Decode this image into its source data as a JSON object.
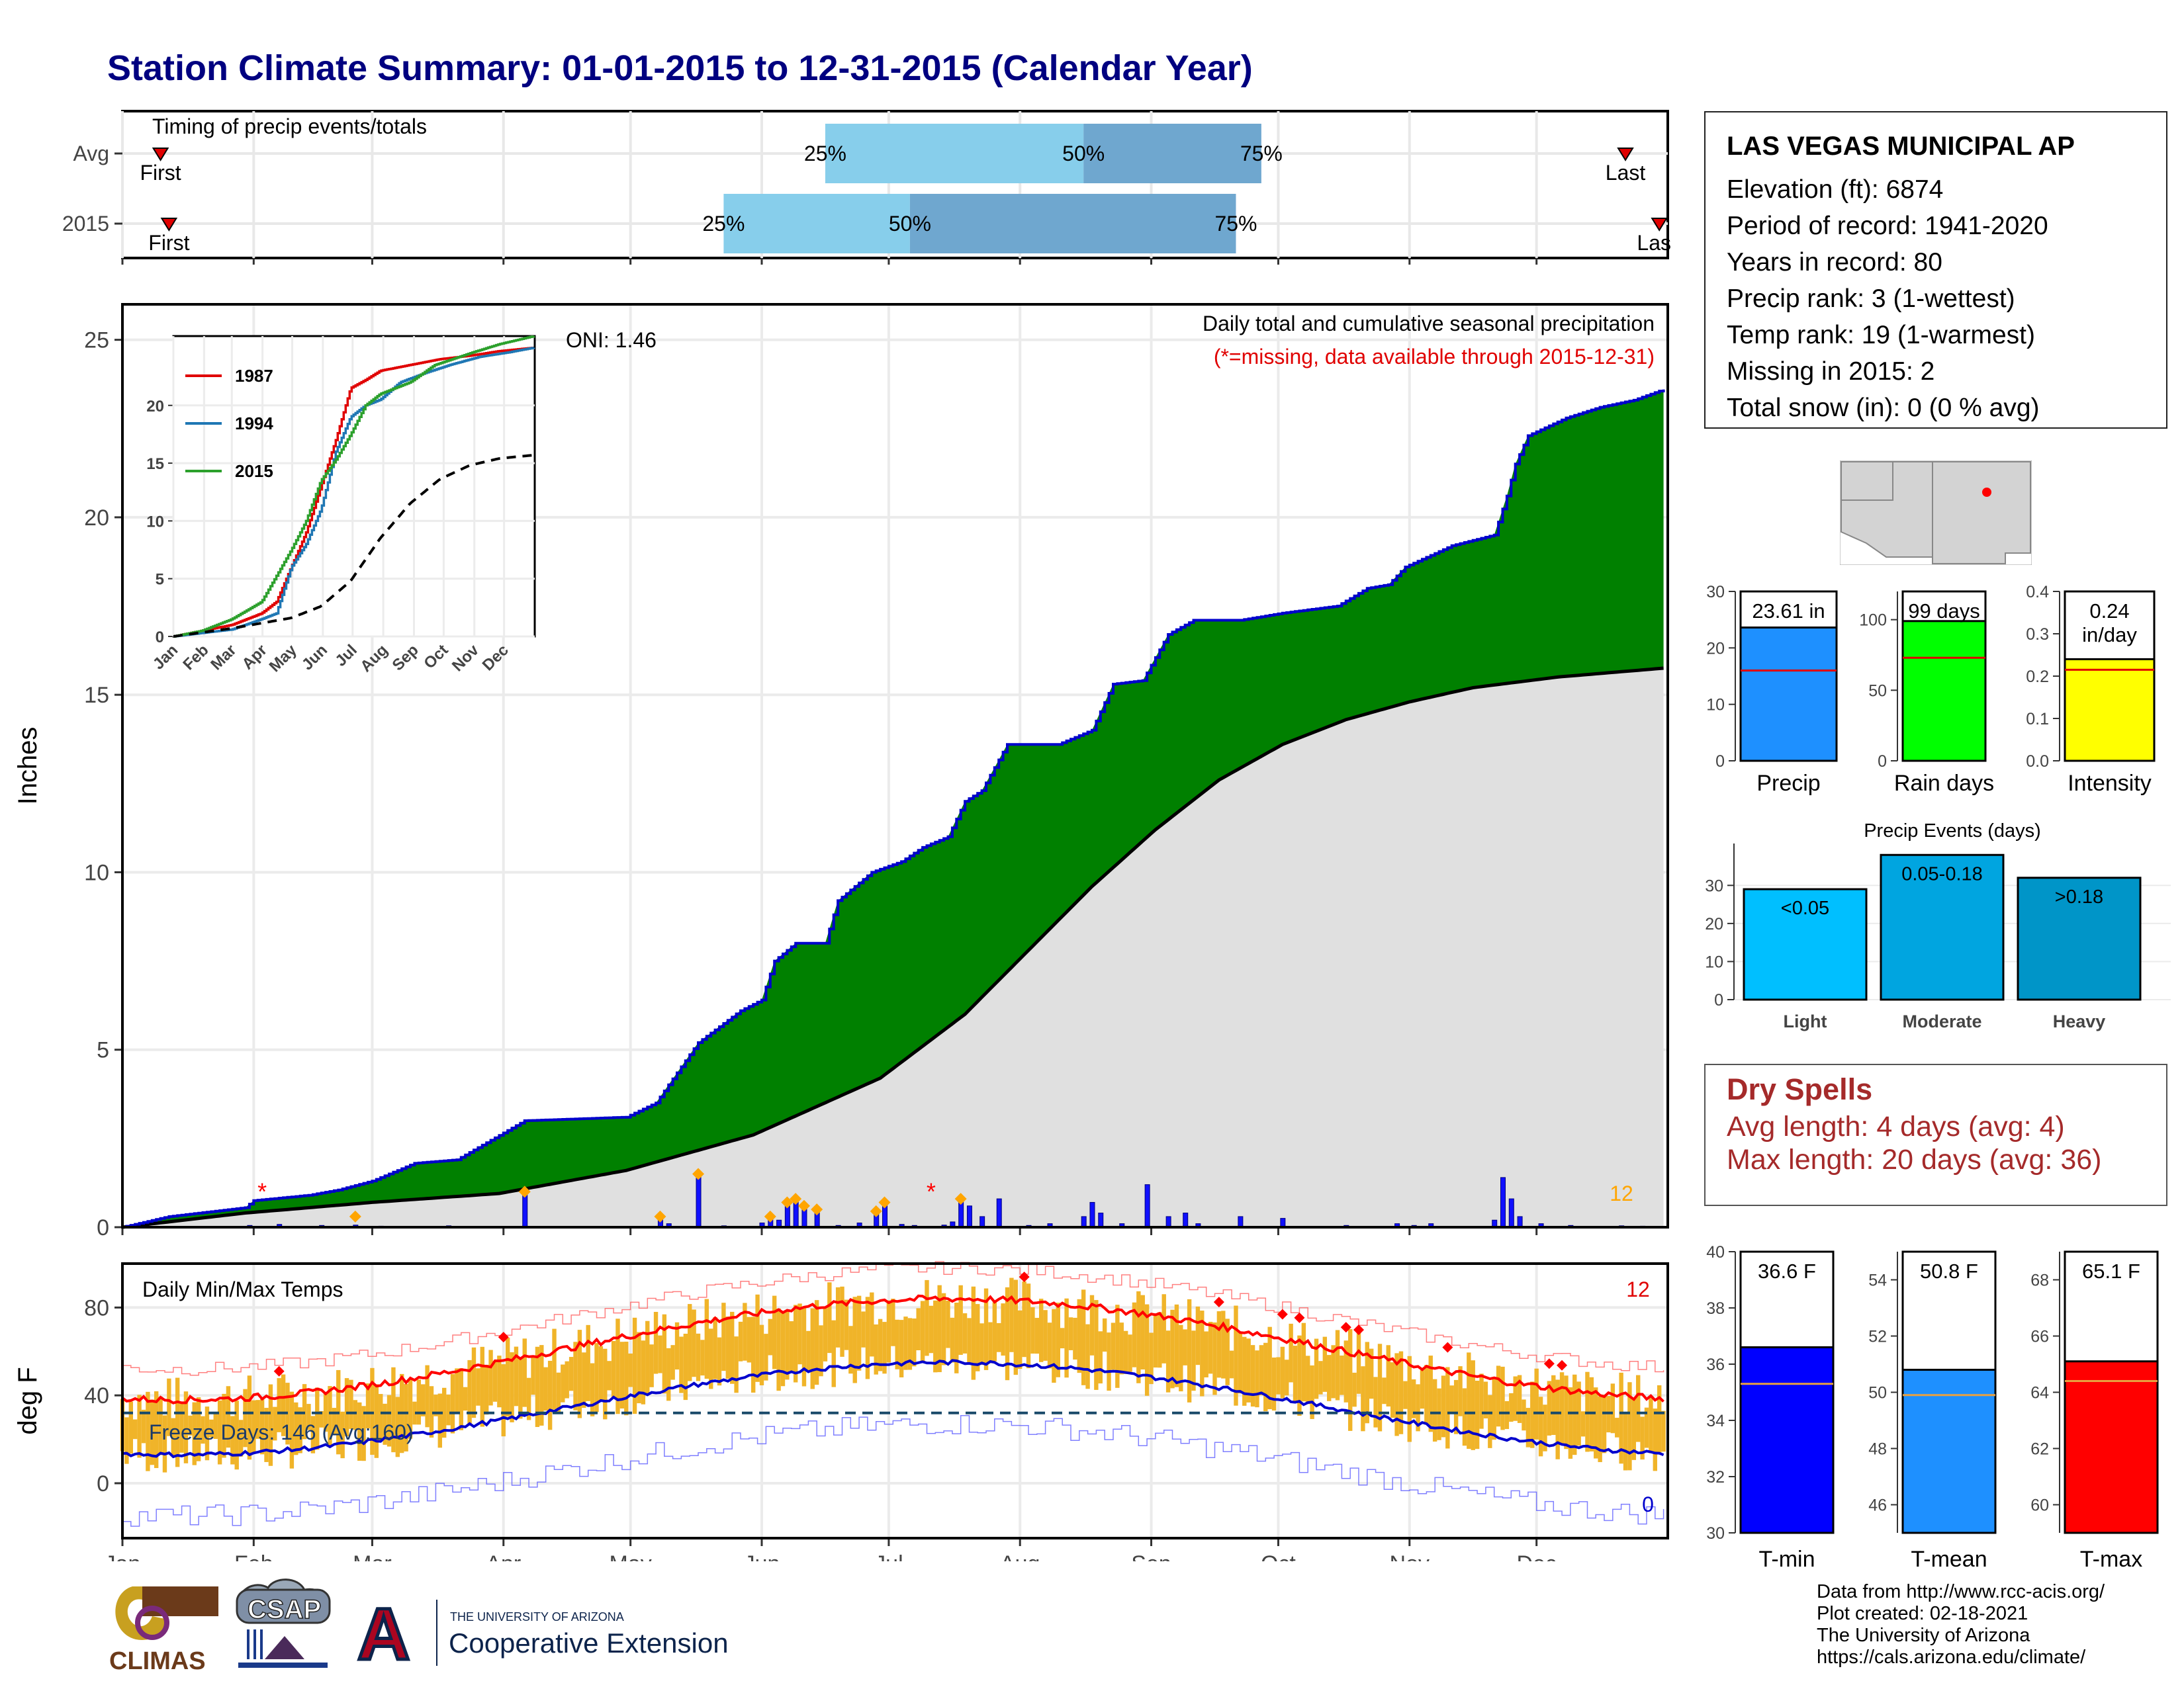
{
  "title": "Station Climate Summary: 01-01-2015 to 12-31-2015 (Calendar Year)",
  "colors": {
    "title": "#000080",
    "cum2015": "#0000cc",
    "fill_green": "#008000",
    "avg_fill": "#e0e0e0",
    "tmax_line": "#ff0000",
    "tmin_line": "#0000cc",
    "temp_bar": "#f0b429",
    "dry": "#a52a2a"
  },
  "months": [
    "Jan",
    "Feb",
    "Mar",
    "Apr",
    "May",
    "Jun",
    "Jul",
    "Aug",
    "Sep",
    "Oct",
    "Nov",
    "Dec"
  ],
  "timing": {
    "title": "Timing of precip events/totals",
    "rows": [
      "Avg",
      "2015"
    ],
    "avg": {
      "first": "First",
      "last": "Last",
      "first_day": 10,
      "last_day": 356,
      "p25": "25%",
      "p50": "50%",
      "p75": "75%",
      "p25_day": 167,
      "p50_day": 228,
      "p75_day": 270
    },
    "y2015": {
      "first": "First",
      "last": "Las",
      "first_day": 12,
      "last_day": 364,
      "p25": "25%",
      "p50": "50%",
      "p75": "75%",
      "p25_day": 143,
      "p50_day": 187,
      "p75_day": 264
    }
  },
  "station": {
    "name": "LAS VEGAS MUNICIPAL AP",
    "lines": [
      "Elevation (ft): 6874",
      "Period of record: 1941-2020",
      "Years in record: 80",
      "Precip rank: 3 (1-wettest)",
      "Temp rank: 19 (1-warmest)",
      "Missing in 2015: 2",
      "Total snow (in): 0 (0 % avg)"
    ]
  },
  "precip_bars": {
    "precip": {
      "label": "23.61 in",
      "name": "Precip",
      "value": 23.61,
      "avg": 16.0,
      "ticks": [
        "0",
        "10",
        "20",
        "30"
      ],
      "max": 30,
      "color": "#1e90ff"
    },
    "raindays": {
      "label": "99 days",
      "name": "Rain days",
      "value": 99,
      "avg": 73,
      "ticks": [
        "0",
        "50",
        "100"
      ],
      "max": 120,
      "color": "#00ff00"
    },
    "intensity": {
      "label1": "0.24",
      "label2": "in/day",
      "name": "Intensity",
      "value": 0.24,
      "avg": 0.215,
      "ticks": [
        "0.0",
        "0.1",
        "0.2",
        "0.3",
        "0.4"
      ],
      "max": 0.4,
      "color": "#ffff00"
    }
  },
  "precip_events": {
    "title": "Precip Events (days)",
    "ticks": [
      "0",
      "10",
      "20",
      "30"
    ],
    "bars": [
      {
        "name": "Light",
        "label": "<0.05",
        "value": 29,
        "color": "#00bfff"
      },
      {
        "name": "Moderate",
        "label": "0.05-0.18",
        "value": 38,
        "color": "#00a5e0"
      },
      {
        "name": "Heavy",
        "label": ">0.18",
        "value": 32,
        "color": "#0095c8"
      }
    ]
  },
  "dry_spells": {
    "title": "Dry Spells",
    "avg": "Avg length: 4 days (avg: 4)",
    "max": "Max length: 20 days (avg: 36)"
  },
  "temp_bars": {
    "tmin": {
      "label": "36.6 F",
      "name": "T-min",
      "value": 36.6,
      "avg": 35.3,
      "min": 30,
      "max": 40,
      "ticks": [
        "30",
        "32",
        "34",
        "36",
        "38",
        "40"
      ],
      "color": "#0000ff"
    },
    "tmean": {
      "label": "50.8 F",
      "name": "T-mean",
      "value": 50.8,
      "avg": 49.9,
      "min": 45,
      "max": 55,
      "ticks": [
        "46",
        "48",
        "50",
        "52",
        "54"
      ],
      "color": "#1e90ff"
    },
    "tmax": {
      "label": "65.1 F",
      "name": "T-max",
      "value": 65.1,
      "avg": 64.4,
      "min": 59,
      "max": 69,
      "ticks": [
        "60",
        "62",
        "64",
        "66",
        "68"
      ],
      "color": "#ff0000"
    }
  },
  "chart_data": {
    "type": "area",
    "title": "Daily total and cumulative seasonal precipitation",
    "subtitle": "(*=missing, data available through 2015-12-31)",
    "ylabel": "Inches",
    "ylim": [
      0,
      26
    ],
    "yticks": [
      "0",
      "5",
      "10",
      "15",
      "20",
      "25"
    ],
    "oni": "ONI: 1.46",
    "count_label": "12",
    "cum_2015_knots": [
      [
        1,
        0
      ],
      [
        12,
        0.3
      ],
      [
        30,
        0.55
      ],
      [
        32,
        0.75
      ],
      [
        45,
        0.9
      ],
      [
        52,
        1.05
      ],
      [
        60,
        1.3
      ],
      [
        66,
        1.6
      ],
      [
        70,
        1.8
      ],
      [
        80,
        1.9
      ],
      [
        96,
        3.0
      ],
      [
        120,
        3.1
      ],
      [
        127,
        3.5
      ],
      [
        137,
        5.2
      ],
      [
        147,
        6.1
      ],
      [
        152,
        6.4
      ],
      [
        155,
        7.5
      ],
      [
        160,
        8.0
      ],
      [
        167,
        8.0
      ],
      [
        170,
        9.2
      ],
      [
        178,
        10.0
      ],
      [
        185,
        10.3
      ],
      [
        190,
        10.7
      ],
      [
        196,
        11.0
      ],
      [
        200,
        12.0
      ],
      [
        204,
        12.3
      ],
      [
        210,
        13.6
      ],
      [
        222,
        13.6
      ],
      [
        230,
        14.0
      ],
      [
        235,
        15.3
      ],
      [
        242,
        15.4
      ],
      [
        248,
        16.7
      ],
      [
        254,
        17.1
      ],
      [
        265,
        17.1
      ],
      [
        275,
        17.3
      ],
      [
        288,
        17.5
      ],
      [
        295,
        18.0
      ],
      [
        300,
        18.1
      ],
      [
        304,
        18.6
      ],
      [
        315,
        19.2
      ],
      [
        325,
        19.5
      ],
      [
        328,
        20.6
      ],
      [
        330,
        21.5
      ],
      [
        333,
        22.3
      ],
      [
        342,
        22.8
      ],
      [
        350,
        23.1
      ],
      [
        358,
        23.3
      ],
      [
        365,
        23.6
      ]
    ],
    "cum_avg_knots": [
      [
        1,
        0
      ],
      [
        30,
        0.4
      ],
      [
        60,
        0.7
      ],
      [
        90,
        0.95
      ],
      [
        120,
        1.6
      ],
      [
        150,
        2.6
      ],
      [
        180,
        4.2
      ],
      [
        200,
        6.0
      ],
      [
        215,
        7.8
      ],
      [
        230,
        9.6
      ],
      [
        245,
        11.2
      ],
      [
        260,
        12.6
      ],
      [
        275,
        13.6
      ],
      [
        290,
        14.3
      ],
      [
        305,
        14.8
      ],
      [
        320,
        15.2
      ],
      [
        340,
        15.5
      ],
      [
        365,
        15.75
      ]
    ],
    "daily_precip": [
      [
        31,
        0.05
      ],
      [
        38,
        0.08
      ],
      [
        48,
        0.05
      ],
      [
        56,
        0.06
      ],
      [
        62,
        0.03
      ],
      [
        78,
        0.04
      ],
      [
        96,
        1.0
      ],
      [
        128,
        0.3
      ],
      [
        130,
        0.1
      ],
      [
        137,
        1.5
      ],
      [
        143,
        0.04
      ],
      [
        152,
        0.12
      ],
      [
        154,
        0.3
      ],
      [
        156,
        0.2
      ],
      [
        158,
        0.7
      ],
      [
        160,
        0.8
      ],
      [
        162,
        0.6
      ],
      [
        165,
        0.5
      ],
      [
        170,
        0.05
      ],
      [
        175,
        0.12
      ],
      [
        179,
        0.45
      ],
      [
        181,
        0.7
      ],
      [
        185,
        0.08
      ],
      [
        188,
        0.05
      ],
      [
        195,
        0.06
      ],
      [
        197,
        0.15
      ],
      [
        199,
        0.8
      ],
      [
        201,
        0.6
      ],
      [
        204,
        0.3
      ],
      [
        208,
        0.8
      ],
      [
        215,
        0.05
      ],
      [
        220,
        0.1
      ],
      [
        228,
        0.3
      ],
      [
        230,
        0.7
      ],
      [
        232,
        0.4
      ],
      [
        237,
        0.1
      ],
      [
        243,
        1.2
      ],
      [
        248,
        0.3
      ],
      [
        252,
        0.4
      ],
      [
        255,
        0.1
      ],
      [
        265,
        0.3
      ],
      [
        275,
        0.25
      ],
      [
        290,
        0.05
      ],
      [
        302,
        0.1
      ],
      [
        306,
        0.05
      ],
      [
        310,
        0.1
      ],
      [
        325,
        0.2
      ],
      [
        327,
        1.4
      ],
      [
        329,
        0.8
      ],
      [
        331,
        0.3
      ],
      [
        336,
        0.1
      ],
      [
        343,
        0.05
      ],
      [
        355,
        0.04
      ],
      [
        360,
        0.03
      ]
    ],
    "missing_days": [
      [
        34,
        1.0
      ],
      [
        192,
        1.0
      ]
    ],
    "inset": {
      "legend": [
        "1987",
        "1994",
        "2015"
      ],
      "colors": [
        "#e00000",
        "#1f77b4",
        "#2ca02c"
      ],
      "yticks": [
        "0",
        "5",
        "10",
        "15",
        "20"
      ],
      "s1987": [
        [
          1,
          0
        ],
        [
          30,
          0.5
        ],
        [
          60,
          1.0
        ],
        [
          90,
          2.0
        ],
        [
          105,
          3.0
        ],
        [
          120,
          6.0
        ],
        [
          135,
          9.0
        ],
        [
          150,
          13.0
        ],
        [
          165,
          17.0
        ],
        [
          180,
          21.5
        ],
        [
          195,
          22.2
        ],
        [
          210,
          23.0
        ],
        [
          240,
          23.5
        ],
        [
          270,
          24.0
        ],
        [
          300,
          24.3
        ],
        [
          330,
          24.7
        ],
        [
          365,
          25.0
        ]
      ],
      "s1994": [
        [
          1,
          0
        ],
        [
          30,
          0.3
        ],
        [
          60,
          0.6
        ],
        [
          90,
          1.5
        ],
        [
          105,
          2.0
        ],
        [
          120,
          6.0
        ],
        [
          135,
          8.0
        ],
        [
          150,
          11.0
        ],
        [
          165,
          16.0
        ],
        [
          180,
          19.0
        ],
        [
          195,
          20.0
        ],
        [
          210,
          20.5
        ],
        [
          230,
          22.0
        ],
        [
          255,
          22.8
        ],
        [
          280,
          23.5
        ],
        [
          310,
          24.2
        ],
        [
          340,
          24.6
        ],
        [
          365,
          25.0
        ]
      ],
      "s2015": [
        [
          1,
          0
        ],
        [
          30,
          0.5
        ],
        [
          60,
          1.5
        ],
        [
          90,
          3.0
        ],
        [
          120,
          7.5
        ],
        [
          135,
          10.0
        ],
        [
          150,
          13.5
        ],
        [
          165,
          15.3
        ],
        [
          180,
          17.5
        ],
        [
          195,
          20.0
        ],
        [
          210,
          21.0
        ],
        [
          240,
          22.0
        ],
        [
          265,
          23.5
        ],
        [
          300,
          24.5
        ],
        [
          330,
          25.3
        ],
        [
          365,
          26.0
        ]
      ],
      "avg": [
        [
          1,
          0
        ],
        [
          60,
          0.7
        ],
        [
          120,
          1.6
        ],
        [
          150,
          2.6
        ],
        [
          180,
          4.8
        ],
        [
          210,
          8.5
        ],
        [
          240,
          11.5
        ],
        [
          270,
          13.6
        ],
        [
          300,
          14.8
        ],
        [
          330,
          15.4
        ],
        [
          365,
          15.7
        ]
      ]
    }
  },
  "temp_chart": {
    "title": "Daily Min/Max Temps",
    "ylabel": "deg F",
    "yticks": [
      "0",
      "40",
      "80"
    ],
    "freeze": "Freeze Days: 146 (Avg:160)",
    "freeze_level": 32,
    "hot_count": "12",
    "cold_count": "0",
    "ylim": [
      -25,
      100
    ]
  },
  "credits": [
    "Data from http://www.rcc-acis.org/",
    "Plot created: 02-18-2021",
    "The University of Arizona",
    "https://cals.arizona.edu/climate/"
  ],
  "logos": {
    "climas": "CLIMAS",
    "csap": "CSAP",
    "ua_small": "THE UNIVERSITY OF ARIZONA",
    "ua_big": "Cooperative Extension",
    "ua_letter": "A"
  }
}
